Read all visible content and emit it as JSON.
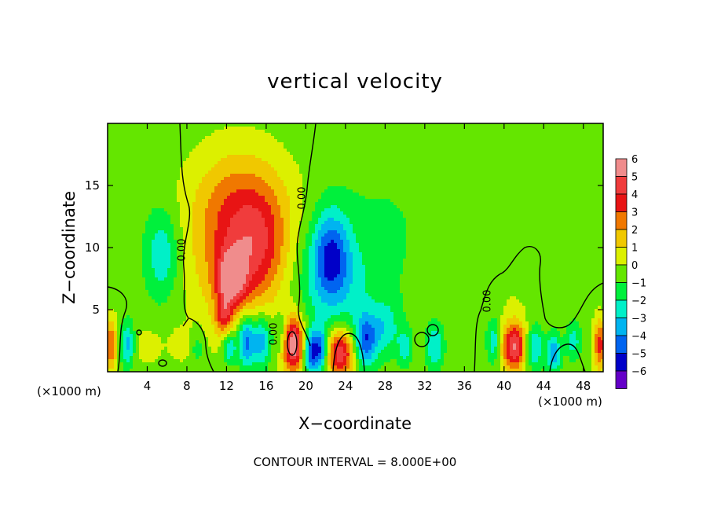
{
  "chart_data": {
    "type": "heatmap",
    "title": "vertical velocity",
    "xlabel": "X−coordinate",
    "ylabel": "Z−coordinate",
    "x_unit_left": "(×1000 m)",
    "x_unit_right": "(×1000 m)",
    "xlim": [
      0,
      50
    ],
    "ylim": [
      0,
      20
    ],
    "x_ticks": [
      4,
      8,
      12,
      16,
      20,
      24,
      28,
      32,
      36,
      40,
      44,
      48
    ],
    "x_tick_labels": [
      "4",
      "8",
      "12",
      "16",
      "20",
      "24",
      "28",
      "32",
      "36",
      "40",
      "44",
      "48"
    ],
    "y_ticks": [
      5,
      10,
      15
    ],
    "y_tick_labels": [
      "5",
      "10",
      "15"
    ],
    "colorbar": {
      "levels": [
        6,
        5,
        4,
        3,
        2,
        1,
        0,
        -1,
        -2,
        -3,
        -4,
        -5,
        -6
      ],
      "labels": [
        "6",
        "5",
        "4",
        "3",
        "2",
        "1",
        "0",
        "−1",
        "−2",
        "−3",
        "−4",
        "−5",
        "−6"
      ],
      "colors": [
        "#f08c8c",
        "#f03c3c",
        "#e81414",
        "#f07800",
        "#f0c800",
        "#dcf000",
        "#64e600",
        "#00f03c",
        "#00f0c8",
        "#00b4f0",
        "#0064f0",
        "#0000c8",
        "#6400c8"
      ]
    },
    "contour_label": "0.00",
    "contour_interval": "CONTOUR INTERVAL = 8.000E+00",
    "features": [
      {
        "x": 13,
        "z": 10,
        "value": 3.5,
        "sx": 3.2,
        "sz": 4.5
      },
      {
        "x": 12.5,
        "z": 7.5,
        "value": 4.5,
        "sx": 1.0,
        "sz": 1.5
      },
      {
        "x": 15.5,
        "z": 10,
        "value": 2,
        "sx": 2,
        "sz": 3
      },
      {
        "x": 14,
        "z": 14,
        "value": 1.2,
        "sx": 4,
        "sz": 3
      },
      {
        "x": 5.5,
        "z": 9.5,
        "value": -2.4,
        "sx": 1.2,
        "sz": 2.5
      },
      {
        "x": 22.5,
        "z": 9.5,
        "value": -3.8,
        "sx": 1.3,
        "sz": 2.5
      },
      {
        "x": 23,
        "z": 7,
        "value": -1.8,
        "sx": 3,
        "sz": 3
      },
      {
        "x": 18.7,
        "z": 2.2,
        "value": 6.5,
        "sx": 0.8,
        "sz": 1.6
      },
      {
        "x": 23.5,
        "z": 1.5,
        "value": 5.5,
        "sx": 1.0,
        "sz": 1.4
      },
      {
        "x": 41,
        "z": 2,
        "value": 5.5,
        "sx": 0.9,
        "sz": 1.4
      },
      {
        "x": 0.3,
        "z": 2.2,
        "value": 3.5,
        "sx": 0.5,
        "sz": 1.5
      },
      {
        "x": 49.7,
        "z": 2.2,
        "value": 4,
        "sx": 0.5,
        "sz": 1.5
      },
      {
        "x": 11.7,
        "z": 4.5,
        "value": 3,
        "sx": 0.6,
        "sz": 1.2
      },
      {
        "x": 14,
        "z": 2.5,
        "value": -4.5,
        "sx": 0.6,
        "sz": 1.5
      },
      {
        "x": 15.5,
        "z": 2.5,
        "value": -3.5,
        "sx": 0.6,
        "sz": 1.5
      },
      {
        "x": 12.3,
        "z": 2,
        "value": -3,
        "sx": 0.5,
        "sz": 1
      },
      {
        "x": 17.5,
        "z": 3,
        "value": -2,
        "sx": 0.6,
        "sz": 1.2
      },
      {
        "x": 20.5,
        "z": 1.5,
        "value": -4.5,
        "sx": 0.5,
        "sz": 1.2
      },
      {
        "x": 21.5,
        "z": 1.8,
        "value": -4,
        "sx": 0.5,
        "sz": 1.2
      },
      {
        "x": 26,
        "z": 2.5,
        "value": -4,
        "sx": 0.8,
        "sz": 1.5
      },
      {
        "x": 28,
        "z": 3.5,
        "value": -2,
        "sx": 1.0,
        "sz": 1.5
      },
      {
        "x": 2,
        "z": 2.2,
        "value": -3,
        "sx": 0.5,
        "sz": 1.2
      },
      {
        "x": 4,
        "z": 2,
        "value": 1.2,
        "sx": 1,
        "sz": 1
      },
      {
        "x": 7.5,
        "z": 2.2,
        "value": 1.0,
        "sx": 1,
        "sz": 1
      },
      {
        "x": 9,
        "z": 2,
        "value": -1.5,
        "sx": 0.5,
        "sz": 1
      },
      {
        "x": 30,
        "z": 2,
        "value": -2,
        "sx": 0.5,
        "sz": 1
      },
      {
        "x": 33,
        "z": 2,
        "value": -2.5,
        "sx": 0.6,
        "sz": 1.2
      },
      {
        "x": 39,
        "z": 2.5,
        "value": -2.5,
        "sx": 0.5,
        "sz": 1.2
      },
      {
        "x": 43,
        "z": 2,
        "value": -3,
        "sx": 0.6,
        "sz": 1.2
      },
      {
        "x": 45,
        "z": 1.5,
        "value": -3.5,
        "sx": 0.5,
        "sz": 1
      },
      {
        "x": 47,
        "z": 2.5,
        "value": -2,
        "sx": 0.5,
        "sz": 1
      },
      {
        "x": 41,
        "z": 7,
        "value": 0.6,
        "sx": 2,
        "sz": 3
      },
      {
        "x": 28,
        "z": 12,
        "value": -0.5,
        "sx": 5,
        "sz": 5
      },
      {
        "x": 42,
        "z": 12,
        "value": -0.3,
        "sx": 5,
        "sz": 5
      }
    ]
  }
}
